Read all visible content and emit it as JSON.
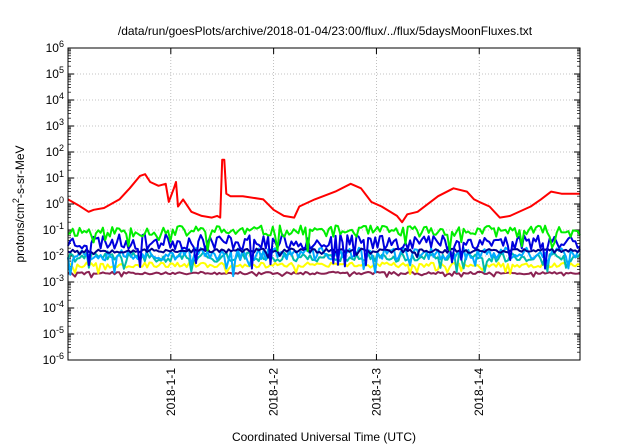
{
  "chart_data": {
    "type": "line",
    "title": "/data/run/goesPlots/archive/2018-01-04/23:00/flux/../flux/5daysMoonFluxes.txt",
    "xlabel": "Coordinated Universal Time (UTC)",
    "ylabel": "protons/cm²-s-sr-MeV",
    "ylabel_parts": {
      "pre": "protons/cm",
      "sup": "2",
      "post": "-s-sr-MeV"
    },
    "yscale": "log",
    "ylim": [
      1e-06,
      1000000.0
    ],
    "ytick_labels": [
      {
        "base": "10",
        "exp": "-6"
      },
      {
        "base": "10",
        "exp": "-5"
      },
      {
        "base": "10",
        "exp": "-4"
      },
      {
        "base": "10",
        "exp": "-3"
      },
      {
        "base": "10",
        "exp": "-2"
      },
      {
        "base": "10",
        "exp": "-1"
      },
      {
        "base": "10",
        "exp": "0"
      },
      {
        "base": "10",
        "exp": "1"
      },
      {
        "base": "10",
        "exp": "2"
      },
      {
        "base": "10",
        "exp": "3"
      },
      {
        "base": "10",
        "exp": "4"
      },
      {
        "base": "10",
        "exp": "5"
      },
      {
        "base": "10",
        "exp": "6"
      }
    ],
    "xlim_days": [
      -1.0,
      3.98
    ],
    "xticks": [
      {
        "label": "2018-1-1",
        "day": 0
      },
      {
        "label": "2018-1-2",
        "day": 1
      },
      {
        "label": "2018-1-3",
        "day": 2
      },
      {
        "label": "2018-1-4",
        "day": 3
      }
    ],
    "grid": true,
    "legend": "none",
    "series": [
      {
        "color": "#ff0000",
        "points": [
          [
            -1.0,
            1.5
          ],
          [
            -0.9,
            0.9
          ],
          [
            -0.8,
            0.5
          ],
          [
            -0.75,
            0.6
          ],
          [
            -0.65,
            0.7
          ],
          [
            -0.5,
            1.5
          ],
          [
            -0.4,
            4
          ],
          [
            -0.3,
            12
          ],
          [
            -0.25,
            14
          ],
          [
            -0.2,
            7
          ],
          [
            -0.12,
            5
          ],
          [
            -0.05,
            6
          ],
          [
            -0.02,
            1.2
          ],
          [
            0.03,
            4
          ],
          [
            0.05,
            7
          ],
          [
            0.07,
            0.8
          ],
          [
            0.12,
            1.5
          ],
          [
            0.2,
            0.5
          ],
          [
            0.3,
            0.35
          ],
          [
            0.4,
            0.3
          ],
          [
            0.45,
            0.35
          ],
          [
            0.48,
            0.3
          ],
          [
            0.5,
            50
          ],
          [
            0.52,
            50
          ],
          [
            0.54,
            2.5
          ],
          [
            0.58,
            2
          ],
          [
            0.7,
            2
          ],
          [
            0.9,
            1.5
          ],
          [
            1.0,
            0.6
          ],
          [
            1.1,
            0.35
          ],
          [
            1.2,
            0.3
          ],
          [
            1.25,
            0.8
          ],
          [
            1.4,
            1.5
          ],
          [
            1.6,
            3
          ],
          [
            1.75,
            6
          ],
          [
            1.85,
            4
          ],
          [
            1.95,
            1.2
          ],
          [
            2.05,
            0.8
          ],
          [
            2.2,
            0.35
          ],
          [
            2.25,
            0.2
          ],
          [
            2.3,
            0.4
          ],
          [
            2.4,
            0.5
          ],
          [
            2.6,
            2
          ],
          [
            2.75,
            4
          ],
          [
            2.88,
            3
          ],
          [
            2.95,
            1.5
          ],
          [
            3.0,
            1.2
          ],
          [
            3.1,
            0.8
          ],
          [
            3.2,
            0.3
          ],
          [
            3.3,
            0.35
          ],
          [
            3.5,
            0.8
          ],
          [
            3.6,
            1.5
          ],
          [
            3.7,
            3
          ],
          [
            3.8,
            2.5
          ],
          [
            3.98,
            2.5
          ]
        ]
      },
      {
        "color": "#00ee00",
        "baseline": 0.09,
        "noise_dex": 0.22,
        "seed": 11
      },
      {
        "color": "#0000dd",
        "baseline": 0.035,
        "noise_dex": 0.3,
        "seed": 23
      },
      {
        "color": "#00aaff",
        "baseline": 0.012,
        "noise_dex": 0.25,
        "seed": 37
      },
      {
        "color": "#00bbaa",
        "baseline": 0.009,
        "noise_dex": 0.18,
        "seed": 41
      },
      {
        "color": "#00008b",
        "baseline": 0.016,
        "noise_dex": 0.08,
        "seed": 53
      },
      {
        "color": "#ffff00",
        "baseline": 0.0045,
        "noise_dex": 0.1,
        "seed": 67
      },
      {
        "color": "#8b2252",
        "baseline": 0.0022,
        "noise_dex": 0.05,
        "seed": 79
      }
    ]
  }
}
